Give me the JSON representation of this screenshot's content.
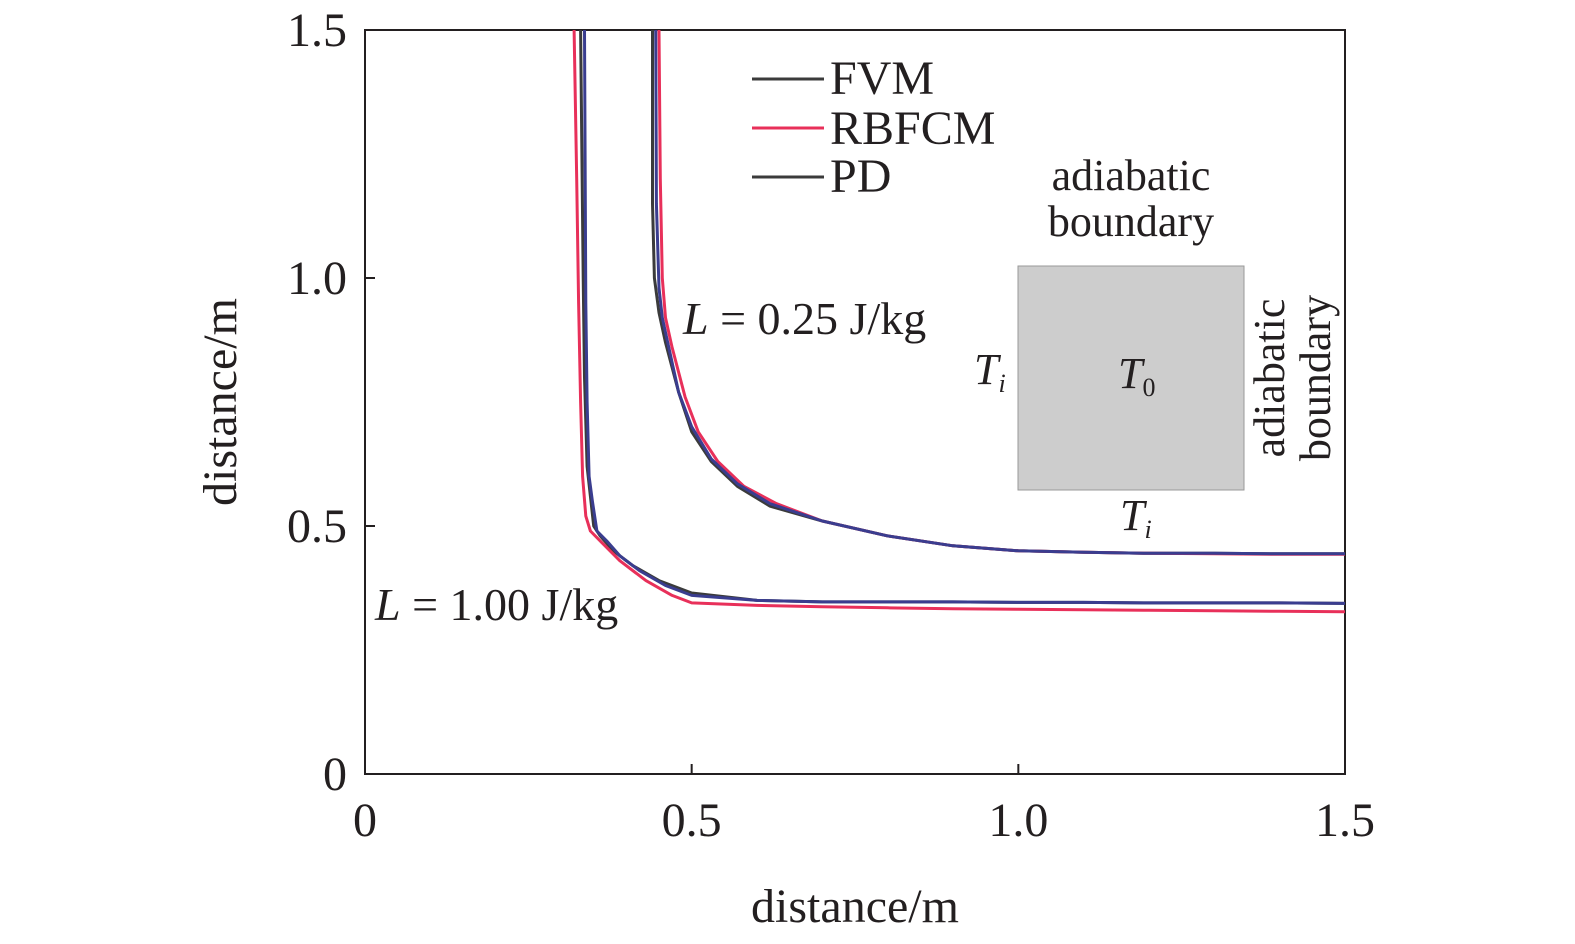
{
  "chart_data": {
    "type": "line",
    "xlabel": "distance/m",
    "ylabel": "distance/m",
    "xlim": [
      0,
      1.5
    ],
    "ylim": [
      0,
      1.5
    ],
    "xticks": [
      "0",
      "0.5",
      "1.0",
      "1.5"
    ],
    "yticks": [
      "0",
      "0.5",
      "1.0",
      "1.5"
    ],
    "grid": false,
    "legend_position": "top-right",
    "legend": [
      {
        "name": "FVM",
        "color": "#3b3b3b"
      },
      {
        "name": "RBFCM",
        "color": "#e8305a"
      },
      {
        "name": "PD",
        "color": "#3b3b3b"
      }
    ],
    "groups": [
      {
        "label": "L = 0.25 J/kg",
        "series": [
          {
            "name": "FVM",
            "color": "#3b3b3b",
            "x": [
              0.44,
              0.44,
              0.443,
              0.45,
              0.46,
              0.48,
              0.5,
              0.53,
              0.57,
              0.62,
              0.7,
              0.8,
              0.9,
              1.0,
              1.1,
              1.2,
              1.3,
              1.4,
              1.5
            ],
            "y": [
              1.5,
              1.15,
              1.0,
              0.93,
              0.87,
              0.77,
              0.69,
              0.63,
              0.58,
              0.54,
              0.51,
              0.48,
              0.46,
              0.45,
              0.447,
              0.445,
              0.445,
              0.444,
              0.444
            ]
          },
          {
            "name": "RBFCM",
            "color": "#e8305a",
            "x": [
              0.45,
              0.452,
              0.455,
              0.46,
              0.47,
              0.49,
              0.51,
              0.54,
              0.58,
              0.63,
              0.7,
              0.8,
              0.9,
              1.0,
              1.1,
              1.2,
              1.3,
              1.4,
              1.5
            ],
            "y": [
              1.5,
              1.2,
              1.0,
              0.92,
              0.86,
              0.76,
              0.69,
              0.63,
              0.58,
              0.545,
              0.51,
              0.48,
              0.46,
              0.45,
              0.447,
              0.445,
              0.444,
              0.443,
              0.443
            ]
          },
          {
            "name": "PD",
            "color": "#3a3d8f",
            "x": [
              0.445,
              0.446,
              0.45,
              0.455,
              0.465,
              0.48,
              0.5,
              0.53,
              0.57,
              0.62,
              0.7,
              0.8,
              0.9,
              1.0,
              1.1,
              1.2,
              1.3,
              1.4,
              1.5
            ],
            "y": [
              1.5,
              1.15,
              0.98,
              0.92,
              0.86,
              0.77,
              0.7,
              0.635,
              0.585,
              0.545,
              0.51,
              0.48,
              0.46,
              0.45,
              0.447,
              0.445,
              0.445,
              0.444,
              0.444
            ]
          }
        ]
      },
      {
        "label": "L = 1.00 J/kg",
        "series": [
          {
            "name": "FVM",
            "color": "#3b3b3b",
            "x": [
              0.33,
              0.332,
              0.334,
              0.336,
              0.34,
              0.345,
              0.35,
              0.36,
              0.38,
              0.41,
              0.45,
              0.5,
              0.6,
              0.7,
              0.8,
              0.9,
              1.0,
              1.1,
              1.2,
              1.3,
              1.4,
              1.5
            ],
            "y": [
              1.5,
              1.25,
              1.0,
              0.8,
              0.62,
              0.56,
              0.5,
              0.48,
              0.45,
              0.42,
              0.39,
              0.365,
              0.35,
              0.347,
              0.347,
              0.347,
              0.346,
              0.346,
              0.345,
              0.345,
              0.345,
              0.344
            ]
          },
          {
            "name": "RBFCM",
            "color": "#e8305a",
            "x": [
              0.32,
              0.324,
              0.327,
              0.33,
              0.333,
              0.338,
              0.345,
              0.36,
              0.39,
              0.43,
              0.47,
              0.5,
              0.6,
              0.7,
              0.8,
              0.9,
              1.0,
              1.1,
              1.2,
              1.3,
              1.4,
              1.5
            ],
            "y": [
              1.5,
              1.2,
              0.95,
              0.75,
              0.6,
              0.52,
              0.49,
              0.47,
              0.43,
              0.39,
              0.36,
              0.345,
              0.34,
              0.337,
              0.335,
              0.333,
              0.332,
              0.331,
              0.33,
              0.329,
              0.328,
              0.327
            ]
          },
          {
            "name": "PD",
            "color": "#3a3d8f",
            "x": [
              0.336,
              0.337,
              0.338,
              0.34,
              0.343,
              0.348,
              0.355,
              0.37,
              0.39,
              0.42,
              0.46,
              0.5,
              0.6,
              0.7,
              0.8,
              0.9,
              1.0,
              1.1,
              1.2,
              1.3,
              1.4,
              1.5
            ],
            "y": [
              1.5,
              1.2,
              0.95,
              0.75,
              0.6,
              0.55,
              0.49,
              0.47,
              0.44,
              0.41,
              0.38,
              0.36,
              0.35,
              0.347,
              0.347,
              0.347,
              0.346,
              0.346,
              0.345,
              0.345,
              0.345,
              0.344
            ]
          }
        ]
      }
    ],
    "inset": {
      "center_label": "T",
      "center_sub": "0",
      "left_label": "T",
      "left_sub": "i",
      "bottom_label": "T",
      "bottom_sub": "i",
      "top_text_line1": "adiabatic",
      "top_text_line2": "boundary",
      "right_text_line1": "adiabatic",
      "right_text_line2": "boundary",
      "fill": "#cdcdcd"
    },
    "annotations": {
      "l025_prefix": "L",
      "l025_rest": " = 0.25 J/kg",
      "l100_prefix": "L",
      "l100_rest": " = 1.00 J/kg"
    }
  }
}
